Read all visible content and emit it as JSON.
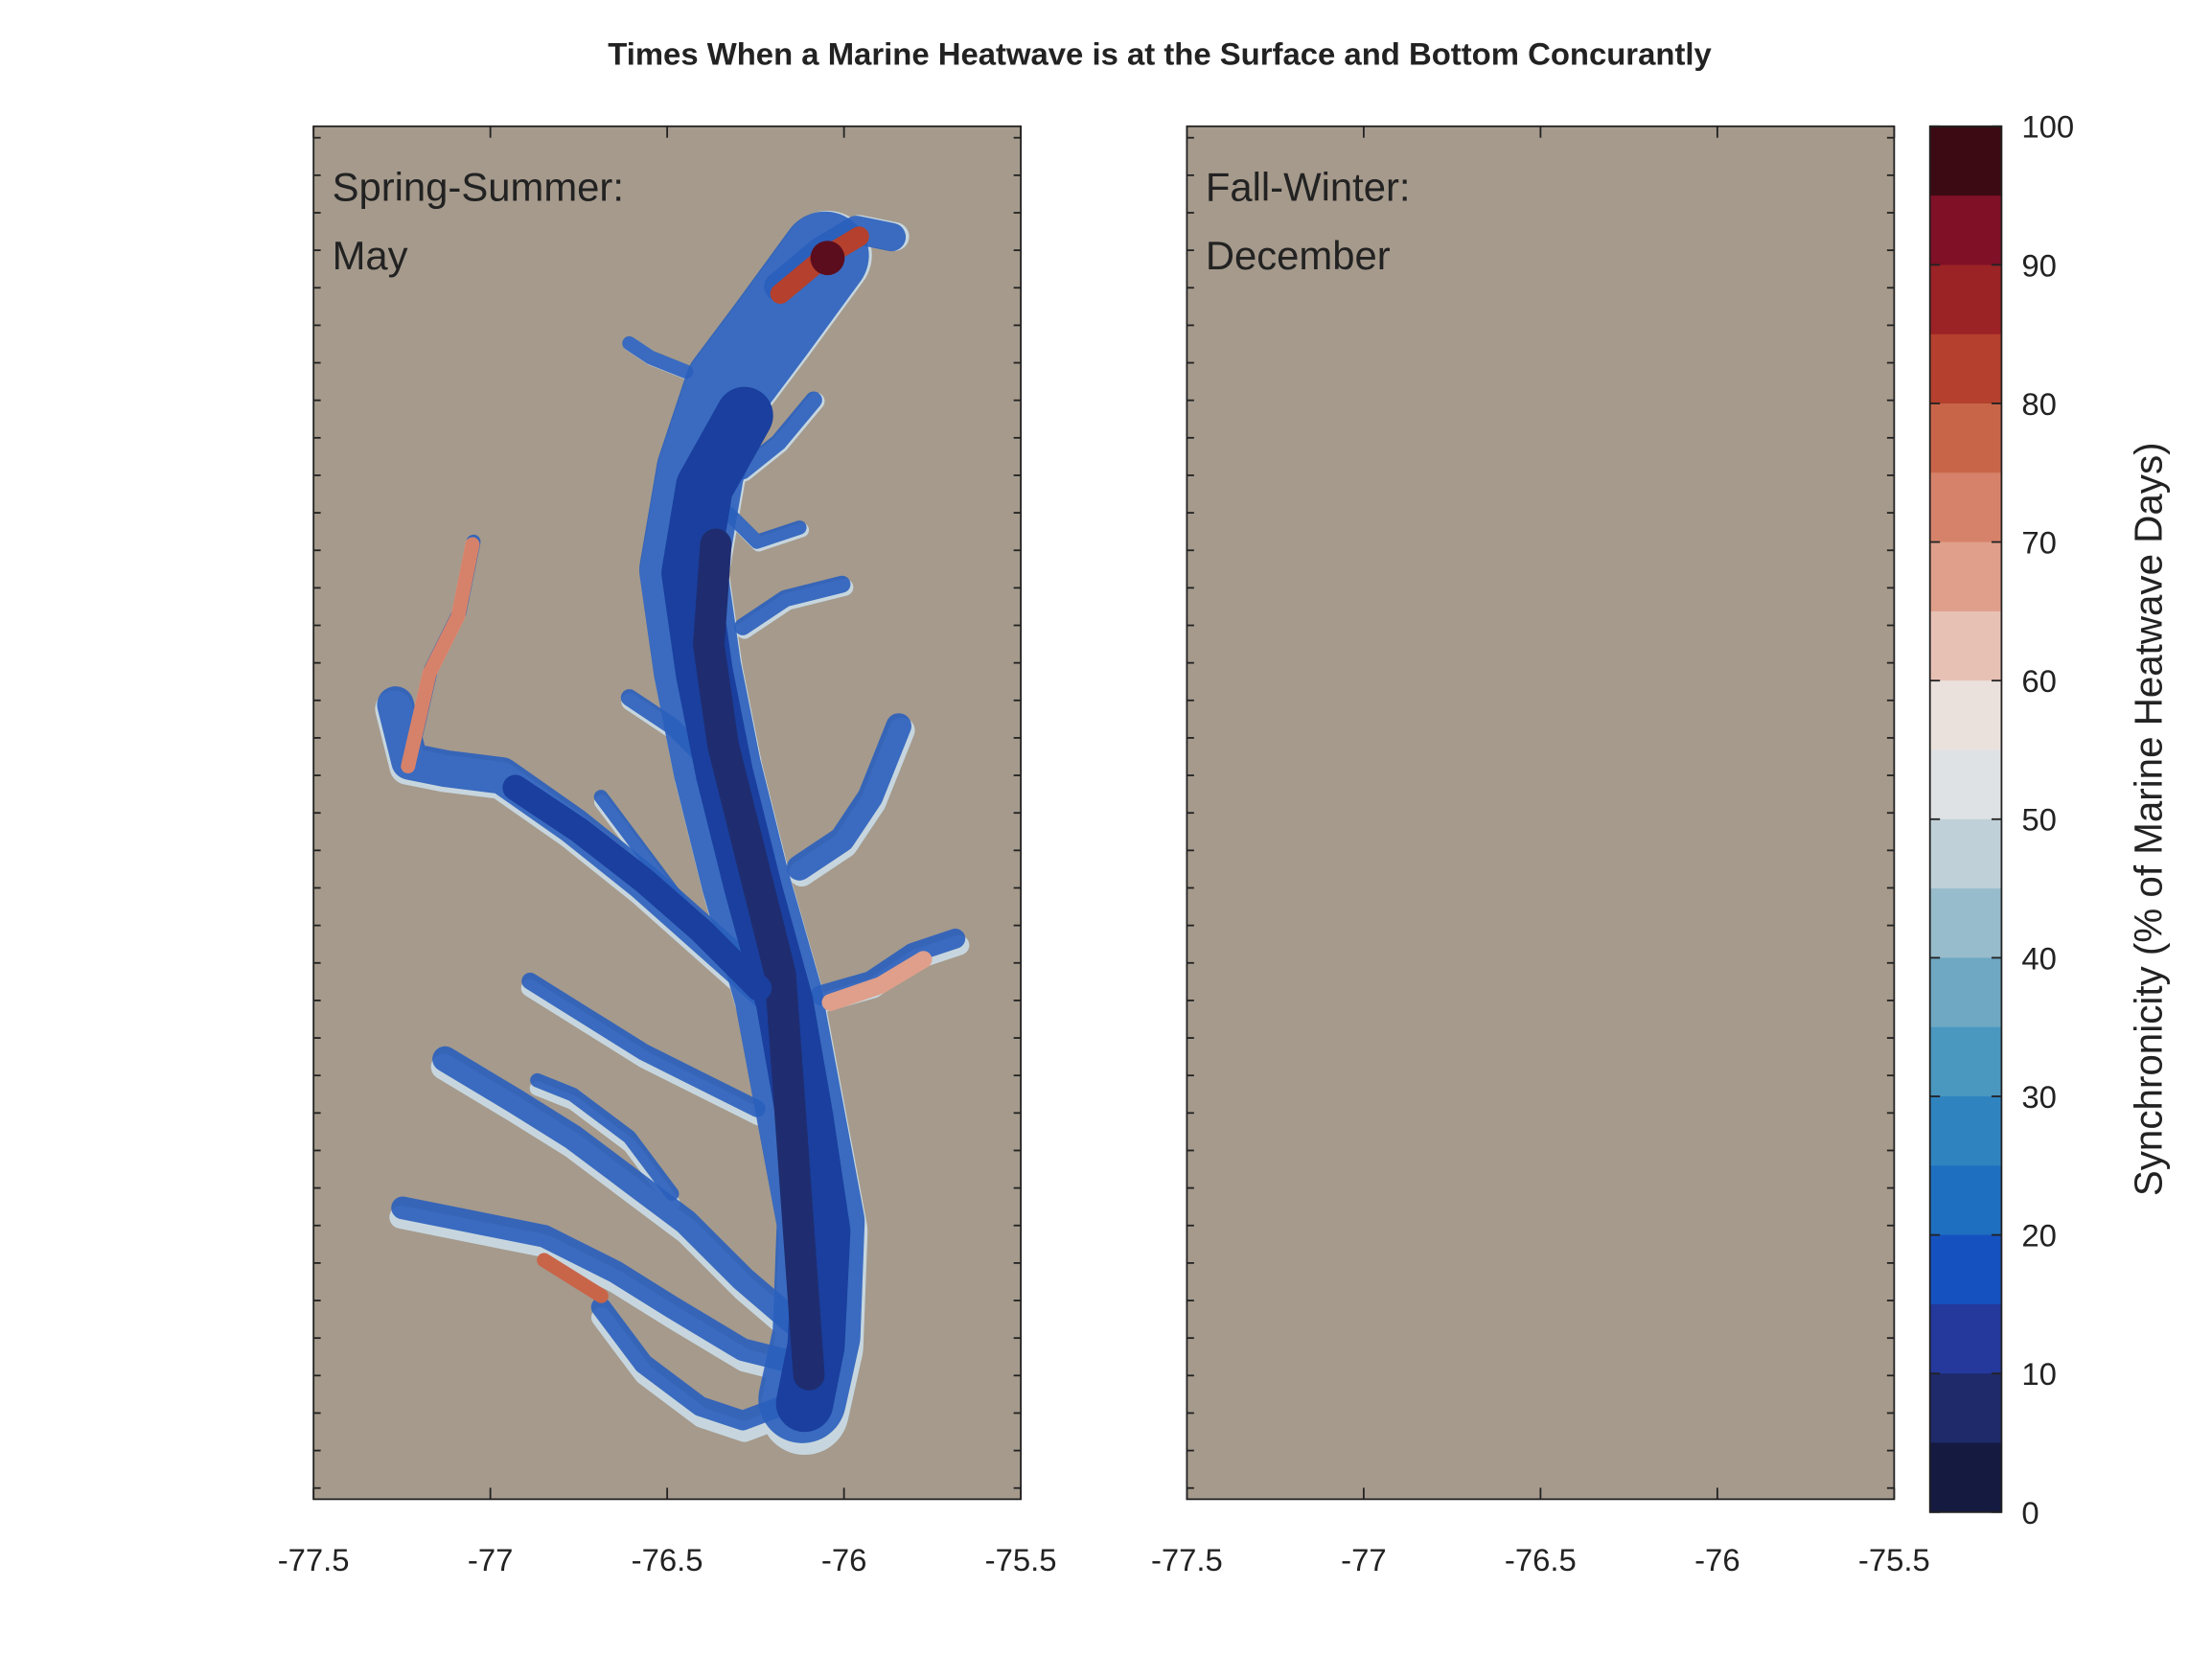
{
  "title": "Times When a Marine Heatwave is at the Surface and Bottom Concurantly",
  "chart_data": [
    {
      "type": "map",
      "annotation": [
        "Spring-Summer:",
        "May"
      ],
      "xlim": [
        -77.5,
        -75.5
      ],
      "xticks": [
        -77.5,
        -77,
        -76.5,
        -76,
        -75.5
      ]
    },
    {
      "type": "map",
      "annotation": [
        "Fall-Winter:",
        "December"
      ],
      "xlim": [
        -77.5,
        -75.5
      ],
      "xticks": [
        -77.5,
        -77,
        -76.5,
        -76,
        -75.5
      ]
    }
  ],
  "colorbar": {
    "label": "Synchronicity (% of Marine Heatwave Days)",
    "lim": [
      0,
      100
    ],
    "ticks": [
      0,
      10,
      20,
      30,
      40,
      50,
      60,
      70,
      80,
      90,
      100
    ],
    "colors": [
      "#141a40",
      "#1e2a6a",
      "#24399b",
      "#1552c0",
      "#1e6fbf",
      "#2f84c0",
      "#4a97c0",
      "#6ea8c2",
      "#97bccb",
      "#bfd0d8",
      "#dfe2e4",
      "#ebe1dc",
      "#e8c1b5",
      "#df9f8b",
      "#d6826a",
      "#c86549",
      "#b4402d",
      "#9b2225",
      "#7f1026",
      "#3c0a12"
    ]
  }
}
